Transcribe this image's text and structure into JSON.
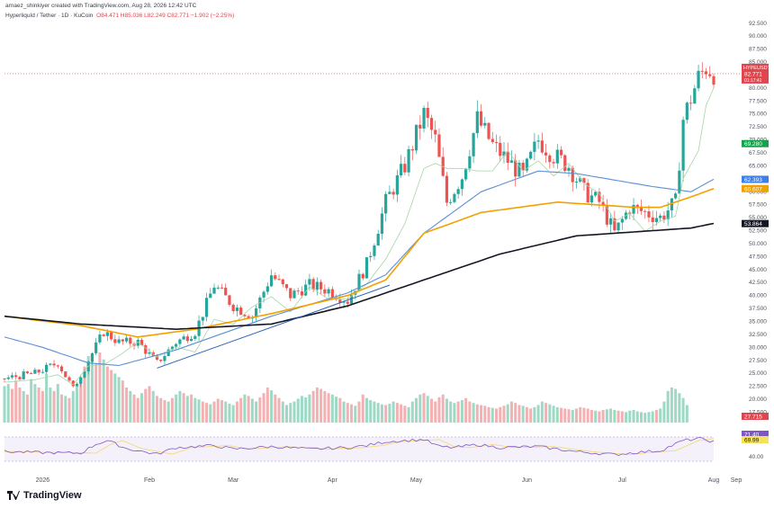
{
  "header": {
    "attribution": "arnaez_shinkiyer created with TradingView.com, Aug 28, 2026 12:42 UTC",
    "symbol": "HyperliquId / Tether · 1D · KuCoin",
    "ohlc": "O84.471  H85.036  L82.249  C82.771  −1.902 (−2.25%)"
  },
  "brand": {
    "logo_text": "TradingView"
  },
  "chart_data": {
    "type": "candlestick",
    "title": "HyperliquId / Tether · 1D · KuCoin",
    "y_ticks": [
      92.5,
      90.0,
      87.5,
      85.0,
      82.5,
      80.0,
      77.5,
      75.0,
      72.5,
      70.0,
      67.5,
      65.0,
      62.5,
      60.0,
      57.5,
      55.0,
      52.5,
      50.0,
      47.5,
      45.0,
      42.5,
      40.0,
      37.5,
      35.0,
      32.5,
      30.0,
      27.5,
      25.0,
      22.5,
      20.0,
      17.5
    ],
    "ylim": [
      15.5,
      93.5
    ],
    "x_labels": [
      "2026",
      "Feb",
      "Mar",
      "Apr",
      "May",
      "Jun",
      "Jul",
      "Aug",
      "Sep"
    ],
    "price_key_points": [
      [
        0,
        24
      ],
      [
        8,
        25
      ],
      [
        14,
        27
      ],
      [
        18,
        22
      ],
      [
        22,
        27.5
      ],
      [
        26,
        33
      ],
      [
        30,
        31
      ],
      [
        35,
        31
      ],
      [
        40,
        27
      ],
      [
        45,
        31
      ],
      [
        50,
        33
      ],
      [
        55,
        42
      ],
      [
        60,
        38
      ],
      [
        65,
        36
      ],
      [
        70,
        44
      ],
      [
        75,
        40
      ],
      [
        80,
        42
      ],
      [
        85,
        41
      ],
      [
        90,
        39
      ],
      [
        95,
        46
      ],
      [
        100,
        58
      ],
      [
        105,
        65
      ],
      [
        110,
        75
      ],
      [
        113,
        70
      ],
      [
        116,
        58
      ],
      [
        120,
        63
      ],
      [
        124,
        74
      ],
      [
        128,
        69
      ],
      [
        132,
        66
      ],
      [
        136,
        63
      ],
      [
        140,
        70
      ],
      [
        144,
        67
      ],
      [
        148,
        65
      ],
      [
        152,
        60
      ],
      [
        156,
        58
      ],
      [
        160,
        52
      ],
      [
        164,
        57
      ],
      [
        168,
        56
      ],
      [
        172,
        55
      ],
      [
        176,
        58
      ],
      [
        178,
        74
      ],
      [
        182,
        82
      ],
      [
        184,
        84
      ],
      [
        186,
        83
      ]
    ],
    "sma_black_points": [
      [
        0,
        36
      ],
      [
        20,
        34.5
      ],
      [
        45,
        33.5
      ],
      [
        70,
        34.5
      ],
      [
        90,
        38
      ],
      [
        110,
        43
      ],
      [
        130,
        48
      ],
      [
        150,
        51.5
      ],
      [
        170,
        52.5
      ],
      [
        180,
        53
      ],
      [
        186,
        53.9
      ]
    ],
    "sma_orange_points": [
      [
        0,
        36
      ],
      [
        20,
        34.2
      ],
      [
        35,
        32
      ],
      [
        50,
        33.5
      ],
      [
        70,
        36.5
      ],
      [
        90,
        40
      ],
      [
        100,
        43
      ],
      [
        110,
        52
      ],
      [
        125,
        56
      ],
      [
        145,
        58
      ],
      [
        165,
        57
      ],
      [
        172,
        57
      ],
      [
        180,
        59
      ],
      [
        186,
        60.6
      ]
    ],
    "sma_blue_points": [
      [
        0,
        32
      ],
      [
        10,
        30
      ],
      [
        22,
        27
      ],
      [
        30,
        26.5
      ],
      [
        45,
        29.5
      ],
      [
        70,
        36
      ],
      [
        90,
        40.5
      ],
      [
        100,
        44
      ],
      [
        110,
        52
      ],
      [
        125,
        60
      ],
      [
        140,
        64
      ],
      [
        150,
        63.5
      ],
      [
        170,
        61
      ],
      [
        180,
        60
      ],
      [
        186,
        62.4
      ]
    ],
    "trendline": [
      [
        40,
        26
      ],
      [
        101,
        42
      ]
    ],
    "volume_levels": [
      0.52,
      0.55,
      0.48,
      0.6,
      0.5,
      0.45,
      0.4,
      0.62,
      0.55,
      0.5,
      0.45,
      0.7,
      0.5,
      0.45,
      0.55,
      0.4,
      0.38,
      0.35,
      0.45,
      0.55,
      0.65,
      0.8,
      0.95,
      0.9,
      0.85,
      1.0,
      0.9,
      0.8,
      0.75,
      0.7,
      0.65,
      0.6,
      0.5,
      0.45,
      0.4,
      0.35,
      0.42,
      0.48,
      0.52,
      0.45,
      0.38,
      0.35,
      0.32,
      0.3,
      0.35,
      0.4,
      0.45,
      0.42,
      0.38,
      0.4,
      0.35,
      0.33,
      0.3,
      0.28,
      0.26,
      0.3,
      0.34,
      0.32,
      0.3,
      0.27,
      0.25,
      0.3,
      0.35,
      0.4,
      0.38,
      0.34,
      0.3,
      0.36,
      0.42,
      0.5,
      0.46,
      0.4,
      0.35,
      0.3,
      0.25,
      0.28,
      0.3,
      0.34,
      0.38,
      0.36,
      0.4,
      0.45,
      0.5,
      0.48,
      0.45,
      0.42,
      0.4,
      0.37,
      0.35,
      0.3,
      0.28,
      0.26,
      0.24,
      0.3,
      0.4,
      0.35,
      0.32,
      0.3,
      0.28,
      0.26,
      0.25,
      0.27,
      0.3,
      0.28,
      0.26,
      0.24,
      0.22,
      0.3,
      0.35,
      0.4,
      0.42,
      0.38,
      0.34,
      0.3,
      0.36,
      0.4,
      0.34,
      0.3,
      0.28,
      0.3,
      0.32,
      0.35,
      0.3,
      0.28,
      0.26,
      0.25,
      0.24,
      0.22,
      0.21,
      0.2,
      0.22,
      0.24,
      0.26,
      0.3,
      0.28,
      0.25,
      0.24,
      0.22,
      0.2,
      0.22,
      0.25,
      0.3,
      0.28,
      0.26,
      0.24,
      0.22,
      0.21,
      0.2,
      0.19,
      0.18,
      0.2,
      0.22,
      0.21,
      0.2,
      0.18,
      0.17,
      0.16,
      0.18,
      0.19,
      0.2,
      0.18,
      0.17,
      0.16,
      0.15,
      0.17,
      0.18,
      0.16,
      0.15,
      0.14,
      0.15,
      0.16,
      0.18,
      0.2,
      0.3,
      0.45,
      0.5,
      0.48,
      0.42,
      0.35,
      0.25
    ],
    "rsi_points": [
      [
        0,
        50
      ],
      [
        10,
        48
      ],
      [
        20,
        47
      ],
      [
        24,
        65
      ],
      [
        27,
        72
      ],
      [
        32,
        56
      ],
      [
        40,
        45
      ],
      [
        45,
        58
      ],
      [
        55,
        62
      ],
      [
        60,
        55
      ],
      [
        70,
        60
      ],
      [
        80,
        55
      ],
      [
        90,
        58
      ],
      [
        95,
        62
      ],
      [
        100,
        70
      ],
      [
        110,
        74
      ],
      [
        114,
        60
      ],
      [
        118,
        58
      ],
      [
        124,
        64
      ],
      [
        130,
        58
      ],
      [
        140,
        60
      ],
      [
        150,
        50
      ],
      [
        160,
        44
      ],
      [
        165,
        48
      ],
      [
        172,
        52
      ],
      [
        178,
        72
      ],
      [
        182,
        76
      ],
      [
        186,
        70
      ]
    ],
    "rsi_ticks": [
      80.0,
      40.0
    ],
    "price_tags": [
      {
        "label": "HYPEUSDT",
        "value": "82.771",
        "sub": "01:17:41",
        "color": "#e0464e"
      },
      {
        "value": "69.280",
        "color": "#13a34a"
      },
      {
        "value": "62.393",
        "color": "#3f7ee8"
      },
      {
        "value": "60.607",
        "color": "#f2a100"
      },
      {
        "value": "53.864",
        "color": "#131722"
      },
      {
        "value": "27.715",
        "color": "#e0464e"
      },
      {
        "value": "71.40",
        "color": "#7e57c2"
      },
      {
        "value": "69.99",
        "color": "#f5e15a"
      }
    ]
  }
}
